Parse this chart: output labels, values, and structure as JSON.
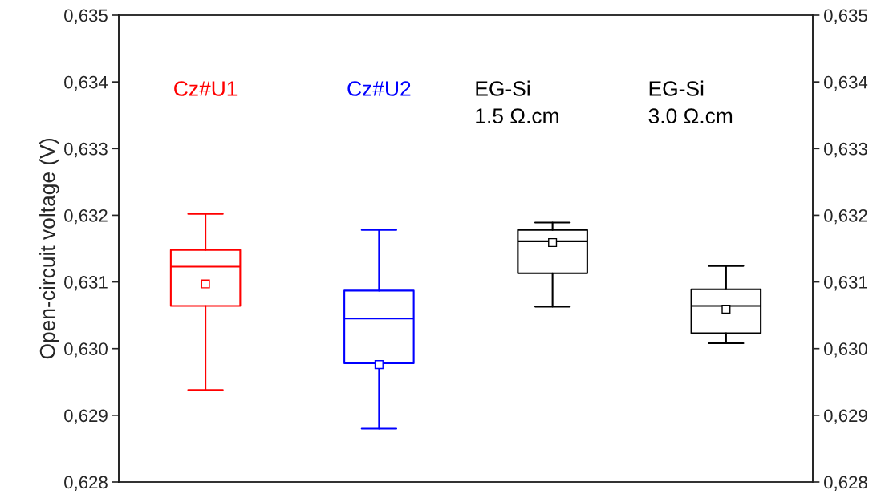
{
  "chart_data": {
    "type": "box",
    "ylabel": "Open-circuit voltage (V)",
    "categories": [
      "Cz#U1",
      "Cz#U2",
      "EG-Si\n1.5 Ω.cm",
      "EG-Si\n3.0 Ω.cm"
    ],
    "colors": [
      "#ff0000",
      "#0000ff",
      "#000000",
      "#000000"
    ],
    "boxes": [
      {
        "low": 0.62938,
        "q1": 0.63064,
        "median": 0.63123,
        "q3": 0.63148,
        "high": 0.63202,
        "mean": 0.63097
      },
      {
        "low": 0.6288,
        "q1": 0.62978,
        "median": 0.63045,
        "q3": 0.63087,
        "high": 0.63178,
        "mean": 0.62976
      },
      {
        "low": 0.63063,
        "q1": 0.63113,
        "median": 0.63161,
        "q3": 0.63178,
        "high": 0.63189,
        "mean": 0.63159
      },
      {
        "low": 0.63008,
        "q1": 0.63023,
        "median": 0.63064,
        "q3": 0.63089,
        "high": 0.63124,
        "mean": 0.63059
      }
    ],
    "ylim": [
      0.628,
      0.635
    ],
    "yticks": [
      {
        "value": 0.628,
        "label": "0,628"
      },
      {
        "value": 0.629,
        "label": "0,629"
      },
      {
        "value": 0.63,
        "label": "0,630"
      },
      {
        "value": 0.631,
        "label": "0,631"
      },
      {
        "value": 0.632,
        "label": "0,632"
      },
      {
        "value": 0.633,
        "label": "0,633"
      },
      {
        "value": 0.634,
        "label": "0,634"
      },
      {
        "value": 0.635,
        "label": "0,635"
      }
    ],
    "y2lim": [
      0.628,
      0.635
    ],
    "y2ticks": [
      {
        "value": 0.628,
        "label": "0,628"
      },
      {
        "value": 0.629,
        "label": "0,629"
      },
      {
        "value": 0.63,
        "label": "0,630"
      },
      {
        "value": 0.631,
        "label": "0,631"
      },
      {
        "value": 0.632,
        "label": "0,632"
      },
      {
        "value": 0.633,
        "label": "0,633"
      },
      {
        "value": 0.634,
        "label": "0,634"
      },
      {
        "value": 0.635,
        "label": "0,635"
      }
    ],
    "marker": "square",
    "tick_labels": "y",
    "grid": false
  }
}
